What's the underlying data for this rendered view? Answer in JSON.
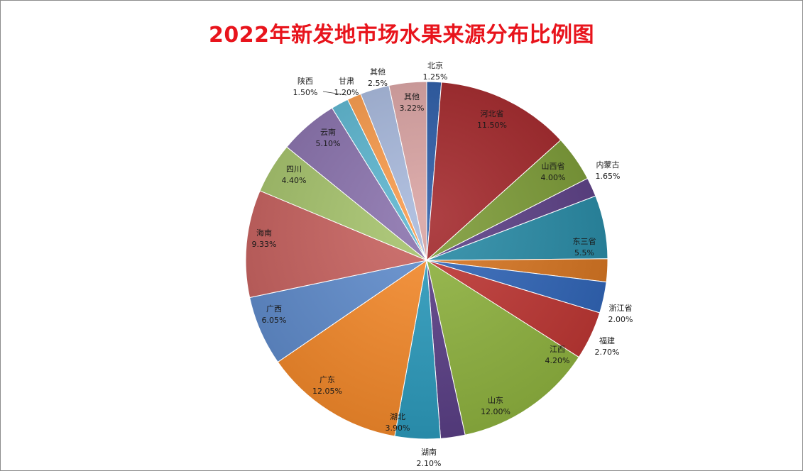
{
  "chart_data": {
    "type": "pie",
    "title": "2022年新发地市场水果来源分布比例图",
    "start_angle_deg": 0,
    "slices": [
      {
        "name": "北京",
        "value": 1.25,
        "label": "1.25%",
        "color": "#2a5aa5",
        "placement": "outside"
      },
      {
        "name": "河北省",
        "value": 11.5,
        "label": "11.50%",
        "color": "#a3272a",
        "placement": "inside"
      },
      {
        "name": "山西省",
        "value": 4.0,
        "label": "4.00%",
        "color": "#7b9a35",
        "placement": "inside"
      },
      {
        "name": "内蒙古",
        "value": 1.65,
        "label": "1.65%",
        "color": "#5b3f85",
        "placement": "outside"
      },
      {
        "name": "东三省",
        "value": 5.5,
        "label": "5.5%",
        "color": "#278aa5",
        "placement": "inside"
      },
      {
        "name": "浙江省",
        "value": 2.0,
        "label": "2.00%",
        "color": "#d67420",
        "placement": "outside"
      },
      {
        "name": "福建",
        "value": 2.7,
        "label": "2.70%",
        "color": "#2f64b7",
        "placement": "outside"
      },
      {
        "name": "江西",
        "value": 4.2,
        "label": "4.20%",
        "color": "#be3532",
        "placement": "inside"
      },
      {
        "name": "山东",
        "value": 12.0,
        "label": "12.00%",
        "color": "#8fb33e",
        "placement": "inside"
      },
      {
        "name": "湖南",
        "value": 2.1,
        "label": "2.10%",
        "color": "#5a3e86",
        "placement": "outside"
      },
      {
        "name": "湖北",
        "value": 3.9,
        "label": "3.90%",
        "color": "#2b9bbd",
        "placement": "inside"
      },
      {
        "name": "广东",
        "value": 12.05,
        "label": "12.05%",
        "color": "#f68a2a",
        "placement": "inside"
      },
      {
        "name": "广西",
        "value": 6.05,
        "label": "6.05%",
        "color": "#5f8ccd",
        "placement": "inside"
      },
      {
        "name": "海南",
        "value": 9.33,
        "label": "9.33%",
        "color": "#c8625f",
        "placement": "inside"
      },
      {
        "name": "四川",
        "value": 4.4,
        "label": "4.40%",
        "color": "#a6c46c",
        "placement": "inside"
      },
      {
        "name": "云南",
        "value": 5.1,
        "label": "5.10%",
        "color": "#8a72ad",
        "placement": "inside"
      },
      {
        "name": "陕西",
        "value": 1.5,
        "label": "1.50%",
        "color": "#5cb6d0",
        "placement": "outside"
      },
      {
        "name": "甘肃",
        "value": 1.2,
        "label": "1.20%",
        "color": "#f99b4b",
        "placement": "outside"
      },
      {
        "name": "其他",
        "value": 2.5,
        "label": "2.5%",
        "color": "#a7b8dc",
        "placement": "outside"
      },
      {
        "name": "其他",
        "value": 3.22,
        "label": "3.22%",
        "color": "#d9a3a2",
        "placement": "inside"
      }
    ]
  }
}
